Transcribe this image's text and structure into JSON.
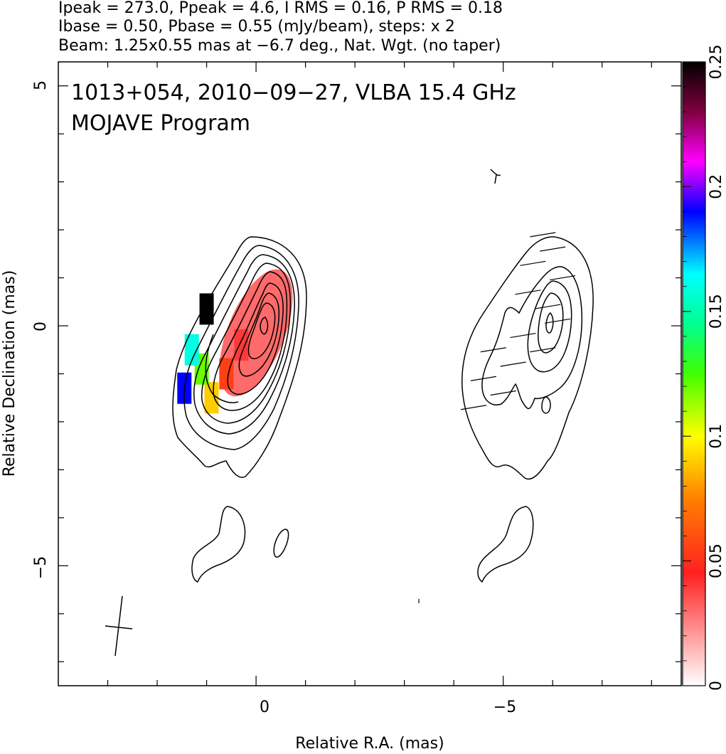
{
  "header": {
    "line1": "Ipeak = 273.0, Ppeak = 4.6, I RMS = 0.16, P RMS = 0.18",
    "line2": "Ibase = 0.50, Pbase = 0.55 (mJy/beam), steps: x 2",
    "line3": "Beam: 1.25x0.55 mas at −6.7 deg., Nat. Wgt. (no taper)"
  },
  "annotations": {
    "source_line": "1013+054, 2010−09−27, VLBA 15.4 GHz",
    "program_line": "MOJAVE Program"
  },
  "chart_data": {
    "type": "heatmap",
    "title": "1013+054, 2010−09−27, VLBA 15.4 GHz",
    "subtitle": "MOJAVE Program",
    "xlabel": "Relative R.A. (mas)",
    "ylabel": "Relative Declination (mas)",
    "xlim": [
      4.0,
      -8.6
    ],
    "ylim": [
      -7.5,
      5.5
    ],
    "x_ticks": [
      0,
      -5
    ],
    "x_tick_labels": [
      "0",
      "−5"
    ],
    "y_ticks": [
      5,
      0,
      -5
    ],
    "y_tick_labels": [
      "5",
      "0",
      "−5"
    ],
    "colorbar": {
      "range": [
        0,
        0.25
      ],
      "ticks": [
        0,
        0.05,
        0.1,
        0.15,
        0.2,
        0.25
      ],
      "tick_labels": [
        "0",
        "0.05",
        "0.1",
        "0.15",
        "0.2",
        "0.25"
      ]
    },
    "left_panel_center": [
      0,
      0
    ],
    "right_panel_center": [
      -6,
      0
    ],
    "peak_intensity_mJy_per_beam": 273.0,
    "peak_polarization_mJy_per_beam": 4.6,
    "I_rms": 0.16,
    "P_rms": 0.18,
    "I_base": 0.5,
    "P_base": 0.55,
    "contour_step_factor": 2,
    "beam": {
      "major_mas": 1.25,
      "minor_mas": 0.55,
      "pa_deg": -6.7
    },
    "fpol_patches": [
      {
        "ra": 0.0,
        "dec": 0.15,
        "value": 0.03
      },
      {
        "ra": 0.3,
        "dec": -0.4,
        "value": 0.04
      },
      {
        "ra": 0.6,
        "dec": -1.0,
        "value": 0.055
      },
      {
        "ra": 0.9,
        "dec": -1.5,
        "value": 0.09
      },
      {
        "ra": 1.1,
        "dec": -0.9,
        "value": 0.12
      },
      {
        "ra": 1.3,
        "dec": -0.5,
        "value": 0.16
      },
      {
        "ra": 1.45,
        "dec": -1.3,
        "value": 0.19
      },
      {
        "ra": 1.0,
        "dec": 0.35,
        "value": 0.25
      }
    ]
  }
}
